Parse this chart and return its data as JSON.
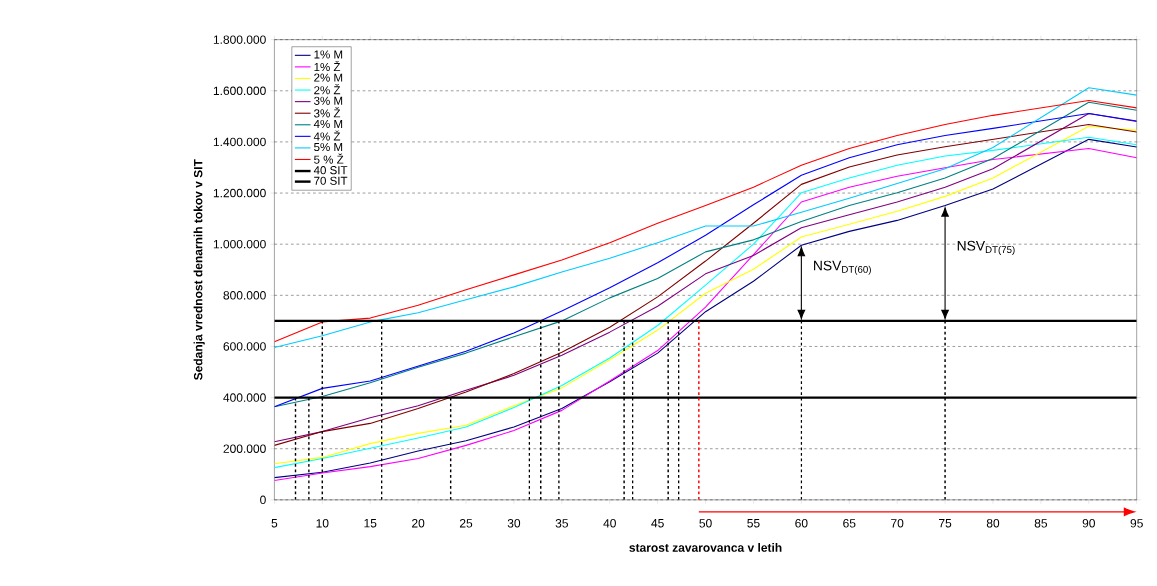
{
  "chart_data": {
    "type": "line",
    "xlabel": "starost zavarovanca v letih",
    "ylabel": "Sedanja vrednost denarnih tokov v SIT",
    "x": [
      5,
      10,
      15,
      20,
      25,
      30,
      35,
      40,
      45,
      50,
      55,
      60,
      65,
      70,
      75,
      80,
      90,
      95
    ],
    "xlim": [
      5,
      95
    ],
    "xticks": [
      5,
      10,
      15,
      20,
      25,
      30,
      35,
      40,
      45,
      50,
      55,
      60,
      65,
      70,
      75,
      80,
      85,
      90,
      95
    ],
    "ylim": [
      0,
      1800000
    ],
    "yticks": [
      {
        "value": 0,
        "label": "0"
      },
      {
        "value": 200000,
        "label": "200.000"
      },
      {
        "value": 400000,
        "label": "400.000"
      },
      {
        "value": 600000,
        "label": "600.000"
      },
      {
        "value": 800000,
        "label": "800.000"
      },
      {
        "value": 1000000,
        "label": "1.000.000"
      },
      {
        "value": 1200000,
        "label": "1.200.000"
      },
      {
        "value": 1400000,
        "label": "1.400.000"
      },
      {
        "value": 1600000,
        "label": "1.600.000"
      },
      {
        "value": 1800000,
        "label": "1.800.000"
      }
    ],
    "grid": "y",
    "legend": "top left",
    "marker": "none",
    "line_style": "solid",
    "series": [
      {
        "name": "1% M",
        "color": "#000080",
        "values": [
          87000,
          108000,
          144000,
          191000,
          231000,
          285000,
          357000,
          462000,
          574000,
          736000,
          855000,
          996000,
          1050000,
          1093000,
          1151000,
          1216000,
          1410000,
          1380000
        ]
      },
      {
        "name": "1% Ž",
        "color": "#ff00ff",
        "values": [
          76000,
          105000,
          130000,
          162000,
          213000,
          271000,
          350000,
          465000,
          584000,
          754000,
          959000,
          1165000,
          1223000,
          1266000,
          1299000,
          1331000,
          1374000,
          1338000
        ]
      },
      {
        "name": "2% M",
        "color": "#ffff00",
        "values": [
          141000,
          166000,
          220000,
          260000,
          292000,
          368000,
          438000,
          548000,
          664000,
          808000,
          902000,
          1028000,
          1078000,
          1129000,
          1187000,
          1259000,
          1461000,
          1445000
        ]
      },
      {
        "name": "2% Ž",
        "color": "#00ffff",
        "values": [
          126000,
          162000,
          202000,
          242000,
          285000,
          361000,
          447000,
          555000,
          682000,
          840000,
          1000000,
          1201000,
          1259000,
          1309000,
          1345000,
          1367000,
          1418000,
          1389000
        ]
      },
      {
        "name": "3% M",
        "color": "#800080",
        "values": [
          227000,
          267000,
          321000,
          368000,
          429000,
          487000,
          566000,
          656000,
          757000,
          884000,
          956000,
          1064000,
          1115000,
          1165000,
          1223000,
          1295000,
          1511000,
          1480000
        ]
      },
      {
        "name": "3% Ž",
        "color": "#800000",
        "values": [
          213000,
          267000,
          299000,
          357000,
          422000,
          494000,
          577000,
          675000,
          794000,
          934000,
          1082000,
          1234000,
          1302000,
          1349000,
          1381000,
          1410000,
          1468000,
          1439000
        ]
      },
      {
        "name": "4% M",
        "color": "#008080",
        "values": [
          364000,
          404000,
          458000,
          519000,
          574000,
          638000,
          700000,
          790000,
          866000,
          970000,
          1017000,
          1089000,
          1151000,
          1201000,
          1259000,
          1335000,
          1555000,
          1524000
        ]
      },
      {
        "name": "4% Ž",
        "color": "#0000ff",
        "values": [
          364000,
          436000,
          465000,
          523000,
          581000,
          653000,
          739000,
          830000,
          927000,
          1035000,
          1154000,
          1270000,
          1338000,
          1389000,
          1425000,
          1453000,
          1511000,
          1482000
        ]
      },
      {
        "name": "5% M",
        "color": "#00ccff",
        "values": [
          596000,
          642000,
          696000,
          732000,
          783000,
          833000,
          891000,
          945000,
          1006000,
          1071000,
          1071000,
          1125000,
          1180000,
          1237000,
          1295000,
          1378000,
          1612000,
          1583000
        ]
      },
      {
        "name": "5 % Ž",
        "color": "#ff0000",
        "values": [
          618000,
          696000,
          711000,
          761000,
          822000,
          880000,
          938000,
          1006000,
          1082000,
          1151000,
          1223000,
          1309000,
          1374000,
          1425000,
          1468000,
          1504000,
          1562000,
          1533000
        ]
      },
      {
        "name": "40 SIT",
        "color": "#000000",
        "x": [
          5,
          95
        ],
        "values": [
          400000,
          400000
        ]
      },
      {
        "name": "70 SIT",
        "color": "#000000",
        "x": [
          5,
          95
        ],
        "values": [
          700000,
          700000
        ]
      },
      {
        "color": "#000000",
        "line_style": "dashed",
        "x": [
          7.2,
          7.2
        ],
        "values": [
          0,
          400000
        ]
      },
      {
        "color": "#000000",
        "line_style": "dashed",
        "x": [
          8.6,
          8.6
        ],
        "values": [
          0,
          400000
        ]
      },
      {
        "color": "#000000",
        "line_style": "dashed",
        "x": [
          10,
          10
        ],
        "values": [
          0,
          700000
        ]
      },
      {
        "color": "#000000",
        "line_style": "dashed",
        "x": [
          16.2,
          16.2
        ],
        "values": [
          0,
          700000
        ]
      },
      {
        "color": "#000000",
        "line_style": "dashed",
        "x": [
          23.4,
          23.4
        ],
        "values": [
          0,
          400000
        ]
      },
      {
        "color": "#000000",
        "line_style": "dashed",
        "x": [
          31.6,
          31.6
        ],
        "values": [
          0,
          400000
        ]
      },
      {
        "color": "#000000",
        "line_style": "dashed",
        "x": [
          32.8,
          32.8
        ],
        "values": [
          0,
          700000
        ]
      },
      {
        "color": "#000000",
        "line_style": "dashed",
        "x": [
          34.7,
          34.7
        ],
        "values": [
          0,
          700000
        ]
      },
      {
        "color": "#000000",
        "line_style": "dashed",
        "x": [
          41.5,
          41.5
        ],
        "values": [
          0,
          700000
        ]
      },
      {
        "color": "#000000",
        "line_style": "dashed",
        "x": [
          42.4,
          42.4
        ],
        "values": [
          0,
          700000
        ]
      },
      {
        "color": "#000000",
        "line_style": "dashed",
        "x": [
          46.1,
          46.1
        ],
        "values": [
          0,
          700000
        ]
      },
      {
        "color": "#000000",
        "line_style": "dashed",
        "x": [
          47.2,
          47.2
        ],
        "values": [
          0,
          700000
        ]
      },
      {
        "color": "#000000",
        "line_style": "dashed",
        "x": [
          60,
          60
        ],
        "values": [
          0,
          700000
        ]
      },
      {
        "color": "#000000",
        "line_style": "dashed",
        "x": [
          75,
          75
        ],
        "values": [
          0,
          700000
        ]
      },
      {
        "color": "#ff0000",
        "line_style": "dashed",
        "x": [
          49.3,
          49.3
        ],
        "values": [
          0,
          700000
        ]
      }
    ],
    "annotations": [
      {
        "text": "NSV$_{DT(60)}$",
        "x": 60,
        "y": 996000
      },
      {
        "text": "NSV$_{DT(75)}$",
        "x": 75,
        "y": 1151000
      }
    ]
  }
}
